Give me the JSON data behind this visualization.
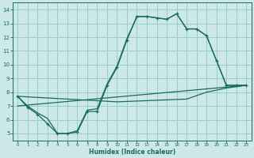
{
  "xlabel": "Humidex (Indice chaleur)",
  "bg_color": "#cce8e8",
  "grid_color": "#99cccc",
  "line_color": "#1a6b5a",
  "xlim": [
    -0.5,
    23.5
  ],
  "ylim": [
    4.5,
    14.5
  ],
  "xticks": [
    0,
    1,
    2,
    3,
    4,
    5,
    6,
    7,
    8,
    9,
    10,
    11,
    12,
    13,
    14,
    15,
    16,
    17,
    18,
    19,
    20,
    21,
    22,
    23
  ],
  "yticks": [
    5,
    6,
    7,
    8,
    9,
    10,
    11,
    12,
    13,
    14
  ],
  "line1_x": [
    0,
    1,
    2,
    3,
    4,
    5,
    6,
    7,
    8,
    9,
    10,
    11,
    12,
    13,
    14,
    15,
    16,
    17,
    18,
    19,
    20,
    21,
    22,
    23
  ],
  "line1_y": [
    7.7,
    6.9,
    6.4,
    5.7,
    5.0,
    5.0,
    5.1,
    6.6,
    6.6,
    8.5,
    9.8,
    11.8,
    13.5,
    13.5,
    13.4,
    13.3,
    13.7,
    12.6,
    12.6,
    12.1,
    10.3,
    8.5,
    8.5,
    8.5
  ],
  "line2_x": [
    0,
    1,
    2,
    3,
    4,
    5,
    6,
    7,
    8,
    9,
    10,
    11,
    12,
    13,
    14,
    15,
    16,
    17,
    18,
    19,
    20,
    21,
    22,
    23
  ],
  "line2_y": [
    7.7,
    7.0,
    6.5,
    6.1,
    5.0,
    5.0,
    5.2,
    6.7,
    6.8,
    8.6,
    9.9,
    11.9,
    13.5,
    13.5,
    13.4,
    13.3,
    13.7,
    12.6,
    12.6,
    12.1,
    10.3,
    8.5,
    8.5,
    8.5
  ],
  "line3_x": [
    0,
    23
  ],
  "line3_y": [
    7.0,
    8.5
  ],
  "line4_x": [
    0,
    10,
    17,
    19,
    21,
    22,
    23
  ],
  "line4_y": [
    7.7,
    7.3,
    7.5,
    8.0,
    8.3,
    8.4,
    8.5
  ]
}
